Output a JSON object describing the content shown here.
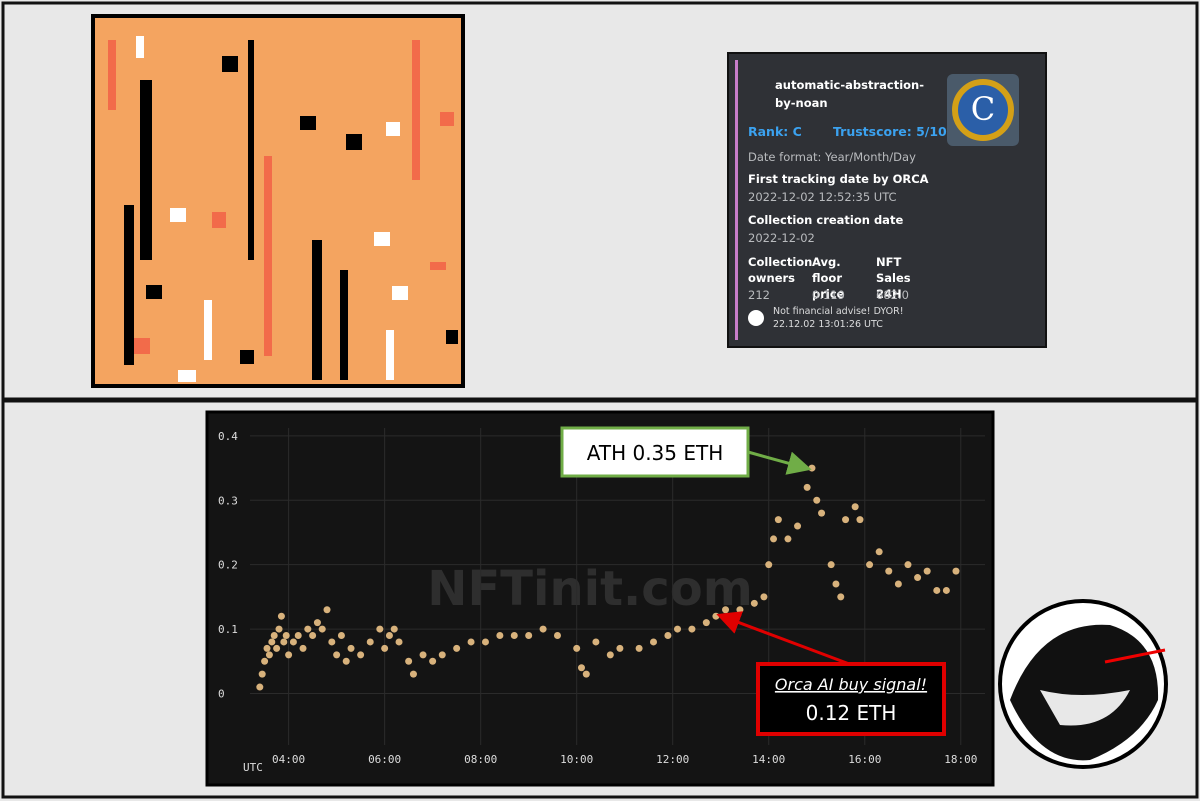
{
  "card": {
    "name": "automatic-abstraction-by-noan",
    "rank": "Rank: C",
    "trustscore": "Trustscore: 5/10",
    "date_format": "Date format: Year/Month/Day",
    "first_tracking_label": "First tracking date by ORCA",
    "first_tracking_value": "2022-12-02 12:52:35 UTC",
    "creation_label": "Collection creation date",
    "creation_value": "2022-12-02",
    "fields": [
      {
        "label": "Collection owners",
        "value": "212"
      },
      {
        "label": "Avg. floor price",
        "value": "0.119"
      },
      {
        "label": "NFT Sales 24H",
        "value": "682.0"
      }
    ],
    "footer": "Not financial advise! DYOR!",
    "footer_time": "22.12.02 13:01:26 UTC"
  },
  "chart_data": {
    "type": "scatter",
    "watermark": "NFTinit.com",
    "x_unit_label": "UTC",
    "color": "#d8b27c",
    "x": [
      3.4,
      3.45,
      3.5,
      3.55,
      3.6,
      3.65,
      3.7,
      3.75,
      3.8,
      3.85,
      3.9,
      3.95,
      4.0,
      4.1,
      4.2,
      4.3,
      4.4,
      4.5,
      4.6,
      4.7,
      4.8,
      4.9,
      5.0,
      5.1,
      5.2,
      5.3,
      5.5,
      5.7,
      5.9,
      6.0,
      6.1,
      6.2,
      6.3,
      6.5,
      6.6,
      6.8,
      7.0,
      7.2,
      7.5,
      7.8,
      8.1,
      8.4,
      8.7,
      9.0,
      9.3,
      9.6,
      10.0,
      10.1,
      10.2,
      10.4,
      10.7,
      10.9,
      11.3,
      11.6,
      11.9,
      12.1,
      12.4,
      12.7,
      12.9,
      13.1,
      13.4,
      13.7,
      13.9,
      14.0,
      14.1,
      14.2,
      14.4,
      14.6,
      14.8,
      14.9,
      15.0,
      15.1,
      15.3,
      15.4,
      15.5,
      15.6,
      15.8,
      15.9,
      16.1,
      16.3,
      16.5,
      16.7,
      16.9,
      17.1,
      17.3,
      17.5,
      17.7,
      17.9
    ],
    "values": [
      0.01,
      0.03,
      0.05,
      0.07,
      0.06,
      0.08,
      0.09,
      0.07,
      0.1,
      0.12,
      0.08,
      0.09,
      0.06,
      0.08,
      0.09,
      0.07,
      0.1,
      0.09,
      0.11,
      0.1,
      0.13,
      0.08,
      0.06,
      0.09,
      0.05,
      0.07,
      0.06,
      0.08,
      0.1,
      0.07,
      0.09,
      0.1,
      0.08,
      0.05,
      0.03,
      0.06,
      0.05,
      0.06,
      0.07,
      0.08,
      0.08,
      0.09,
      0.09,
      0.09,
      0.1,
      0.09,
      0.07,
      0.04,
      0.03,
      0.08,
      0.06,
      0.07,
      0.07,
      0.08,
      0.09,
      0.1,
      0.1,
      0.11,
      0.12,
      0.13,
      0.13,
      0.14,
      0.15,
      0.2,
      0.24,
      0.27,
      0.24,
      0.26,
      0.32,
      0.35,
      0.3,
      0.28,
      0.2,
      0.17,
      0.15,
      0.27,
      0.29,
      0.27,
      0.2,
      0.22,
      0.19,
      0.17,
      0.2,
      0.18,
      0.19,
      0.16,
      0.16,
      0.19
    ],
    "xlim": [
      2.8,
      18.65
    ],
    "ylim": [
      -0.08,
      0.42
    ],
    "xticks": [
      {
        "value": 4,
        "label": "04:00"
      },
      {
        "value": 6,
        "label": "06:00"
      },
      {
        "value": 8,
        "label": "08:00"
      },
      {
        "value": 10,
        "label": "10:00"
      },
      {
        "value": 12,
        "label": "12:00"
      },
      {
        "value": 14,
        "label": "14:00"
      },
      {
        "value": 16,
        "label": "16:00"
      },
      {
        "value": 18,
        "label": "18:00"
      }
    ],
    "yticks": [
      0,
      0.1,
      0.2,
      0.3,
      0.4
    ],
    "grid": true,
    "annotations": [
      {
        "text": "ATH 0.35 ETH",
        "color": "#70ad47",
        "point": 69
      },
      {
        "text": "Orca AI buy signal!",
        "text2": "0.12 ETH",
        "color": "#e00000",
        "point": 58
      }
    ]
  }
}
